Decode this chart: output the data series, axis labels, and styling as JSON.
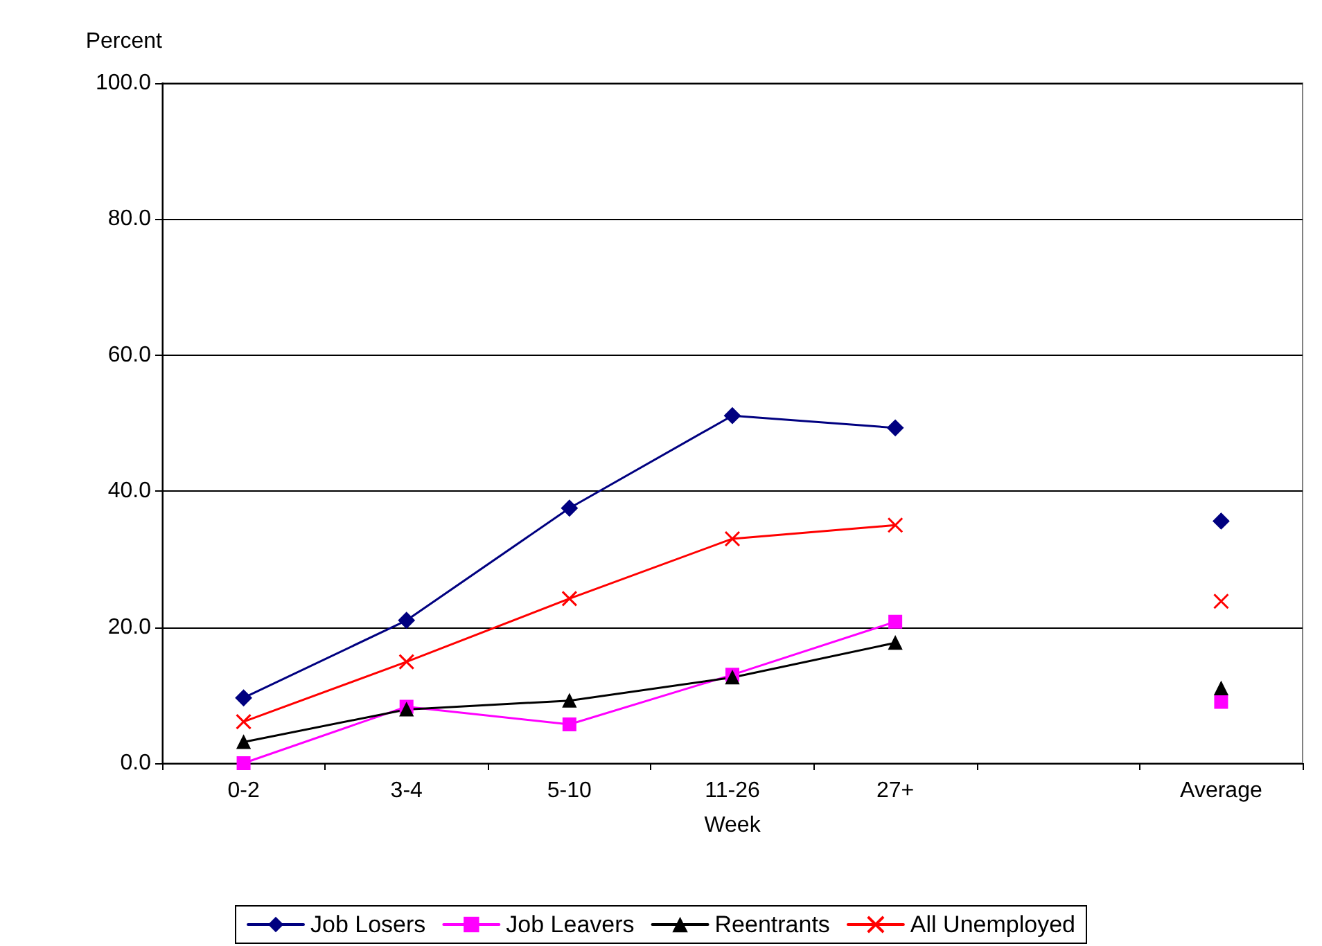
{
  "chart_data": {
    "type": "line",
    "xlabel": "Week",
    "ylabel": "Percent",
    "categories": [
      "0-2",
      "3-4",
      "5-10",
      "11-26",
      "27+",
      null,
      "Average"
    ],
    "ylim": [
      0,
      100
    ],
    "yticks": [
      {
        "value": 0,
        "label": "0.0"
      },
      {
        "value": 20,
        "label": "20.0"
      },
      {
        "value": 40,
        "label": "40.0"
      },
      {
        "value": 60,
        "label": "60.0"
      },
      {
        "value": 80,
        "label": "80.0"
      },
      {
        "value": 100,
        "label": "100.0"
      }
    ],
    "grid": "y",
    "legend": "bottom",
    "line_style": "solid",
    "series": [
      {
        "name": "Job Losers",
        "color": "#000080",
        "marker": "diamond",
        "values": [
          9.6,
          21.0,
          37.5,
          51.1,
          49.3,
          null,
          35.6
        ]
      },
      {
        "name": "Job Leavers",
        "color": "#ff00ff",
        "marker": "square",
        "values": [
          0.0,
          8.3,
          5.7,
          13.0,
          20.8,
          null,
          9.0
        ]
      },
      {
        "name": "Reentrants",
        "color": "#000000",
        "marker": "triangle",
        "values": [
          3.1,
          7.9,
          9.2,
          12.6,
          17.7,
          null,
          11.0
        ]
      },
      {
        "name": "All Unemployed",
        "color": "#ff0000",
        "marker": "cross",
        "values": [
          6.1,
          14.9,
          24.2,
          33.0,
          35.0,
          null,
          23.8
        ]
      }
    ]
  }
}
